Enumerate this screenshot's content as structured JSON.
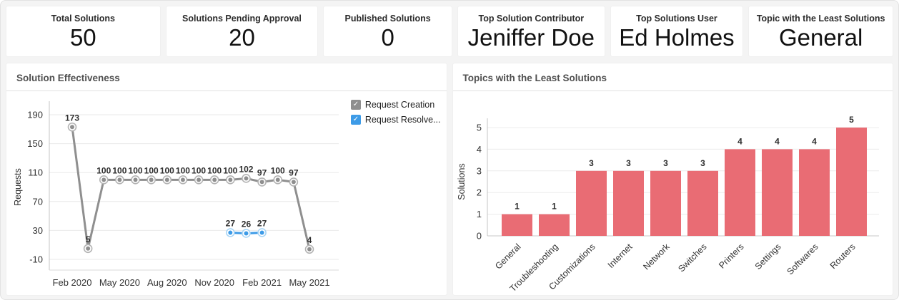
{
  "stat_cards": [
    {
      "label": "Total Solutions",
      "value": "50"
    },
    {
      "label": "Solutions Pending Approval",
      "value": "20"
    },
    {
      "label": "Published Solutions",
      "value": "0"
    },
    {
      "label": "Top Solution Contributor",
      "value": "Jeniffer Doe"
    },
    {
      "label": "Top Solutions User",
      "value": "Ed Holmes"
    },
    {
      "label": "Topic with the Least Solutions",
      "value": "General"
    }
  ],
  "panels": [
    {
      "title": "Solution Effectiveness"
    },
    {
      "title": "Topics with the Least Solutions"
    }
  ],
  "chart_data": [
    {
      "type": "line",
      "title": "Solution Effectiveness",
      "xlabel": "",
      "ylabel": "Requests",
      "ylim": [
        -10,
        190
      ],
      "yticks": [
        -10,
        30,
        70,
        110,
        150,
        190
      ],
      "grid": true,
      "legend_position": "right-top",
      "point_count": 16,
      "xticks": [
        {
          "pos": 0,
          "label": "Feb 2020"
        },
        {
          "pos": 3,
          "label": "May 2020"
        },
        {
          "pos": 6,
          "label": "Aug 2020"
        },
        {
          "pos": 9,
          "label": "Nov 2020"
        },
        {
          "pos": 12,
          "label": "Feb 2021"
        },
        {
          "pos": 15,
          "label": "May 2021"
        }
      ],
      "series": [
        {
          "name": "Request Creation",
          "color": "#8f8f8f",
          "halo": "#b3b3b3",
          "checked": true,
          "values": [
            173,
            5,
            100,
            100,
            100,
            100,
            100,
            100,
            100,
            100,
            100,
            102,
            97,
            100,
            97,
            4
          ]
        },
        {
          "name": "Request Resolve...",
          "color": "#3d9be7",
          "halo": "#a9d5f5",
          "checked": true,
          "values": [
            null,
            null,
            null,
            null,
            null,
            null,
            null,
            null,
            null,
            null,
            27,
            26,
            27,
            null,
            null,
            null
          ]
        }
      ]
    },
    {
      "type": "bar",
      "title": "Topics with the Least Solutions",
      "xlabel": "",
      "ylabel": "Solutions",
      "ylim": [
        0,
        5
      ],
      "yticks": [
        0,
        1,
        2,
        3,
        4,
        5
      ],
      "grid": true,
      "bar_color": "#e96c74",
      "categories": [
        "General",
        "Troubleshooting",
        "Customizations",
        "Internet",
        "Network",
        "Switches",
        "Printers",
        "Settings",
        "Softwares",
        "Routers"
      ],
      "values": [
        1,
        1,
        3,
        3,
        3,
        3,
        4,
        4,
        4,
        5
      ]
    }
  ],
  "legend_check_glyph": "✓"
}
